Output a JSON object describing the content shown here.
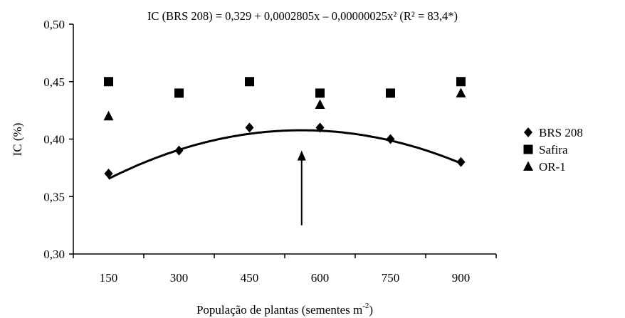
{
  "chart_data": {
    "type": "scatter",
    "title": "IC (BRS 208) = 0,329 + 0,0002805x – 0,00000025x² (R² = 83,4*)",
    "xlabel": "População de plantas (sementes m",
    "xlabel_sup": "-2",
    "xlabel_suffix": ")",
    "ylabel": "IC (%)",
    "x": [
      150,
      300,
      450,
      600,
      750,
      900
    ],
    "x_tick_labels": [
      "150",
      "300",
      "450",
      "600",
      "750",
      "900"
    ],
    "y_tick_labels": [
      "0,30",
      "0,35",
      "0,40",
      "0,45",
      "0,50"
    ],
    "y_ticks": [
      0.3,
      0.35,
      0.4,
      0.45,
      0.5
    ],
    "ylim": [
      0.3,
      0.5
    ],
    "grid": false,
    "legend_position": "right",
    "series": [
      {
        "name": "BRS 208",
        "marker": "diamond",
        "glyph": "♦",
        "values": [
          0.37,
          0.39,
          0.41,
          0.41,
          0.4,
          0.38
        ]
      },
      {
        "name": "Safira",
        "marker": "square",
        "glyph": "■",
        "values": [
          0.45,
          0.44,
          0.45,
          0.44,
          0.44,
          0.45
        ]
      },
      {
        "name": "OR-1",
        "marker": "triangle",
        "glyph": "▲",
        "values": [
          0.42,
          null,
          null,
          0.43,
          null,
          0.44
        ]
      }
    ],
    "fit": {
      "series": "BRS 208",
      "a": 0.329,
      "b": 0.0002805,
      "c": -2.5e-07
    },
    "arrow": {
      "x": 561,
      "y_from": 0.325,
      "y_to": 0.39
    },
    "colors": {
      "marks": "#000000",
      "background": "#ffffff"
    }
  }
}
